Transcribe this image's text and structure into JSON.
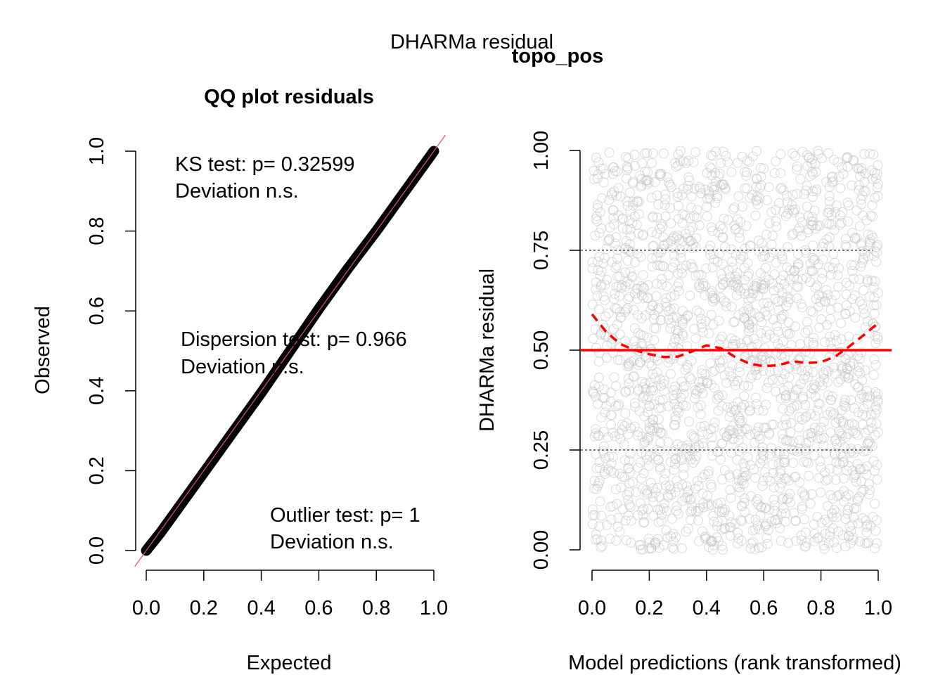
{
  "figure": {
    "title": "DHARMa residual",
    "subtitle": "topo_pos"
  },
  "chart_data": [
    {
      "type": "scatter",
      "title": "QQ plot residuals",
      "xlabel": "Expected",
      "ylabel": "Observed",
      "xlim": [
        0,
        1
      ],
      "ylim": [
        0,
        1
      ],
      "x_ticks": [
        "0.0",
        "0.2",
        "0.4",
        "0.6",
        "0.8",
        "1.0"
      ],
      "y_ticks": [
        "0.0",
        "0.2",
        "0.4",
        "0.6",
        "0.8",
        "1.0"
      ],
      "series": [
        {
          "description": "uniform QQ points",
          "x": [
            0,
            0.05,
            0.1,
            0.2,
            0.3,
            0.4,
            0.5,
            0.6,
            0.7,
            0.8,
            0.9,
            1.0
          ],
          "y": [
            0,
            0.045,
            0.095,
            0.195,
            0.295,
            0.395,
            0.5,
            0.605,
            0.705,
            0.8,
            0.9,
            1.0
          ],
          "color": "#000000"
        },
        {
          "description": "1:1 reference line",
          "x": [
            0,
            1
          ],
          "y": [
            0,
            1
          ],
          "color": "#DF536B"
        }
      ],
      "annotations": {
        "ks": [
          "KS test: p= 0.32599",
          "Deviation  n.s."
        ],
        "dispersion": [
          "Dispersion test: p= 0.966",
          "Deviation  n.s."
        ],
        "outlier": [
          "Outlier test: p= 1",
          "Deviation  n.s."
        ]
      }
    },
    {
      "type": "scatter",
      "title": "",
      "xlabel": "Model predictions (rank transformed)",
      "ylabel": "DHARMa residual",
      "xlim": [
        0,
        1
      ],
      "ylim": [
        0,
        1
      ],
      "x_ticks": [
        "0.0",
        "0.2",
        "0.4",
        "0.6",
        "0.8",
        "1.0"
      ],
      "y_ticks": [
        "0.00",
        "0.25",
        "0.50",
        "0.75",
        "1.00"
      ],
      "points": "about 2000 residuals uniformly spread over [0,1] x [0,1]",
      "point_color": "#BEBEBE",
      "reference_lines": [
        {
          "y": 0.25,
          "style": "dashed",
          "color": "#000000"
        },
        {
          "y": 0.5,
          "style": "solid",
          "color": "#FF0000"
        },
        {
          "y": 0.75,
          "style": "dashed",
          "color": "#000000"
        }
      ],
      "quantile_fit": {
        "style": "dashed",
        "color": "#FF0000",
        "x": [
          0.0,
          0.05,
          0.1,
          0.15,
          0.2,
          0.25,
          0.3,
          0.35,
          0.4,
          0.45,
          0.5,
          0.55,
          0.6,
          0.65,
          0.7,
          0.75,
          0.8,
          0.85,
          0.9,
          0.95,
          1.0
        ],
        "y": [
          0.59,
          0.545,
          0.515,
          0.5,
          0.49,
          0.483,
          0.484,
          0.497,
          0.512,
          0.505,
          0.483,
          0.466,
          0.46,
          0.462,
          0.472,
          0.468,
          0.47,
          0.484,
          0.51,
          0.538,
          0.568
        ]
      }
    }
  ]
}
